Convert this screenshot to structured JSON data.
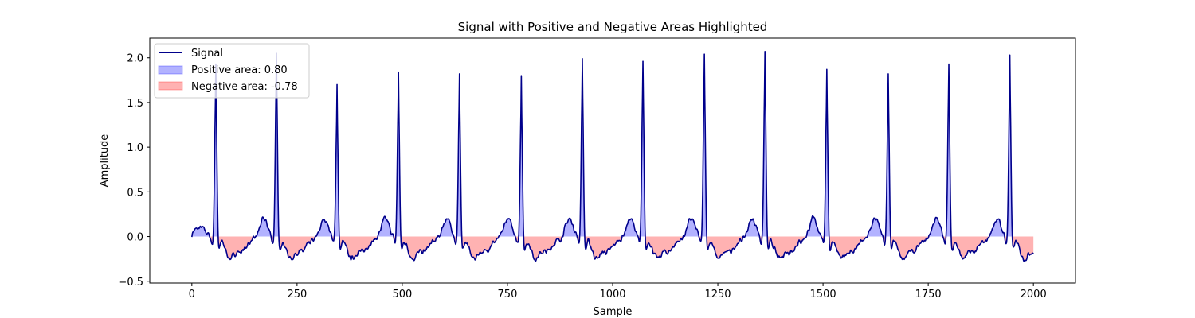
{
  "chart_data": {
    "type": "area",
    "title": "Signal with Positive and Negative Areas Highlighted",
    "xlabel": "Sample",
    "ylabel": "Amplitude",
    "xlim": [
      -100,
      2100
    ],
    "ylim": [
      -0.52,
      2.22
    ],
    "xticks": [
      0,
      250,
      500,
      750,
      1000,
      1250,
      1500,
      1750,
      2000
    ],
    "yticks": [
      -0.5,
      0.0,
      0.5,
      1.0,
      1.5,
      2.0
    ],
    "xtick_labels": [
      "0",
      "250",
      "500",
      "750",
      "1000",
      "1250",
      "1500",
      "1750",
      "2000"
    ],
    "ytick_labels": [
      "−0.5",
      "0.0",
      "0.5",
      "1.0",
      "1.5",
      "2.0"
    ],
    "grid": false,
    "legend_position": "upper-left",
    "baseline": 0,
    "sample_range": [
      0,
      2000
    ],
    "peaks": [
      {
        "x": 57,
        "y": 1.93
      },
      {
        "x": 201,
        "y": 2.05
      },
      {
        "x": 345,
        "y": 1.7
      },
      {
        "x": 491,
        "y": 1.84
      },
      {
        "x": 636,
        "y": 1.82
      },
      {
        "x": 783,
        "y": 1.8
      },
      {
        "x": 928,
        "y": 1.99
      },
      {
        "x": 1072,
        "y": 1.96
      },
      {
        "x": 1218,
        "y": 2.04
      },
      {
        "x": 1362,
        "y": 2.07
      },
      {
        "x": 1509,
        "y": 1.87
      },
      {
        "x": 1655,
        "y": 1.82
      },
      {
        "x": 1799,
        "y": 1.93
      },
      {
        "x": 1944,
        "y": 2.03
      }
    ],
    "series": [
      {
        "name": "Signal",
        "kind": "line",
        "color": "#00008b"
      },
      {
        "name": "Positive area: 0.80",
        "kind": "fill",
        "color": "#0000ff",
        "area": 0.8
      },
      {
        "name": "Negative area: -0.78",
        "kind": "fill",
        "color": "#ff0000",
        "area": -0.78
      }
    ]
  }
}
